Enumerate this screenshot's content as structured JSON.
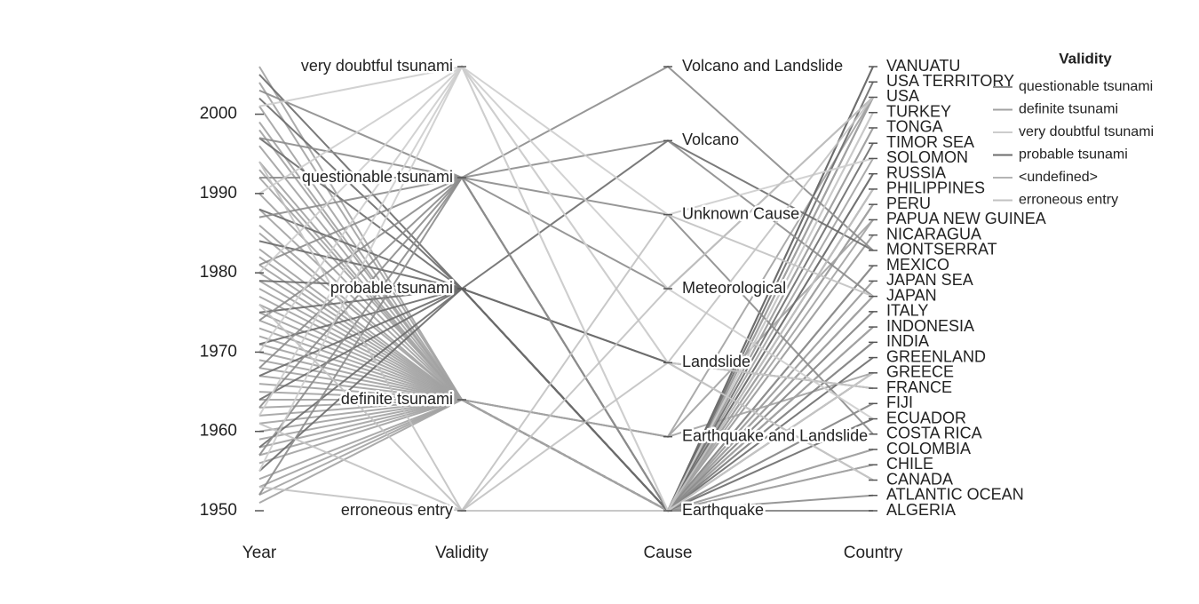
{
  "chart_data": {
    "type": "parallel-coordinates",
    "axes": [
      "Year",
      "Validity",
      "Cause",
      "Country"
    ],
    "year_axis": {
      "ticks": [
        1950,
        1960,
        1970,
        1980,
        1990,
        2000
      ],
      "range": [
        1950,
        2006
      ]
    },
    "validity_axis": [
      "erroneous entry",
      "definite tsunami",
      "probable tsunami",
      "questionable tsunami",
      "very doubtful tsunami"
    ],
    "cause_axis": [
      "Earthquake",
      "Earthquake and Landslide",
      "Landslide",
      "Meteorological",
      "Unknown Cause",
      "Volcano",
      "Volcano and Landslide"
    ],
    "country_axis": [
      "ALGERIA",
      "ATLANTIC OCEAN",
      "CANADA",
      "CHILE",
      "COLOMBIA",
      "COSTA RICA",
      "ECUADOR",
      "FIJI",
      "FRANCE",
      "GREECE",
      "GREENLAND",
      "INDIA",
      "INDONESIA",
      "ITALY",
      "JAPAN",
      "JAPAN SEA",
      "MEXICO",
      "MONTSERRAT",
      "NICARAGUA",
      "PAPUA NEW GUINEA",
      "PERU",
      "PHILIPPINES",
      "RUSSIA",
      "SOLOMON",
      "TIMOR SEA",
      "TONGA",
      "TURKEY",
      "USA",
      "USA TERRITORY",
      "VANUATU"
    ],
    "legend": {
      "title": "Validity",
      "placement": "right",
      "entries": [
        {
          "name": "questionable tsunami",
          "color": "#8c8c8c"
        },
        {
          "name": "definite tsunami",
          "color": "#a2a2a2"
        },
        {
          "name": "very doubtful tsunami",
          "color": "#cdcdcd"
        },
        {
          "name": "probable tsunami",
          "color": "#6c6c6c"
        },
        {
          "name": "<undefined>",
          "color": "#b4b4b4"
        },
        {
          "name": "erroneous entry",
          "color": "#c2c2c2"
        }
      ]
    },
    "records": [
      {
        "year": 1951,
        "validity": "definite tsunami",
        "cause": "Earthquake",
        "country": "CHILE"
      },
      {
        "year": 1952,
        "validity": "definite tsunami",
        "cause": "Earthquake",
        "country": "RUSSIA"
      },
      {
        "year": 1953,
        "validity": "definite tsunami",
        "cause": "Earthquake",
        "country": "FIJI"
      },
      {
        "year": 1954,
        "validity": "definite tsunami",
        "cause": "Earthquake",
        "country": "ALGERIA"
      },
      {
        "year": 1956,
        "validity": "definite tsunami",
        "cause": "Earthquake and Landslide",
        "country": "GREECE"
      },
      {
        "year": 1957,
        "validity": "definite tsunami",
        "cause": "Earthquake",
        "country": "USA"
      },
      {
        "year": 1958,
        "validity": "definite tsunami",
        "cause": "Earthquake and Landslide",
        "country": "USA"
      },
      {
        "year": 1959,
        "validity": "definite tsunami",
        "cause": "Earthquake",
        "country": "JAPAN"
      },
      {
        "year": 1960,
        "validity": "definite tsunami",
        "cause": "Earthquake",
        "country": "CHILE"
      },
      {
        "year": 1961,
        "validity": "definite tsunami",
        "cause": "Earthquake",
        "country": "JAPAN"
      },
      {
        "year": 1962,
        "validity": "definite tsunami",
        "cause": "Earthquake",
        "country": "COLOMBIA"
      },
      {
        "year": 1963,
        "validity": "definite tsunami",
        "cause": "Earthquake",
        "country": "INDONESIA"
      },
      {
        "year": 1964,
        "validity": "definite tsunami",
        "cause": "Earthquake",
        "country": "USA"
      },
      {
        "year": 1965,
        "validity": "definite tsunami",
        "cause": "Earthquake",
        "country": "ITALY"
      },
      {
        "year": 1966,
        "validity": "definite tsunami",
        "cause": "Earthquake",
        "country": "PERU"
      },
      {
        "year": 1967,
        "validity": "definite tsunami",
        "cause": "Earthquake",
        "country": "PHILIPPINES"
      },
      {
        "year": 1968,
        "validity": "definite tsunami",
        "cause": "Earthquake",
        "country": "JAPAN"
      },
      {
        "year": 1969,
        "validity": "definite tsunami",
        "cause": "Earthquake",
        "country": "MEXICO"
      },
      {
        "year": 1970,
        "validity": "definite tsunami",
        "cause": "Earthquake",
        "country": "PAPUA NEW GUINEA"
      },
      {
        "year": 1971,
        "validity": "definite tsunami",
        "cause": "Earthquake",
        "country": "SOLOMON"
      },
      {
        "year": 1972,
        "validity": "definite tsunami",
        "cause": "Earthquake",
        "country": "NICARAGUA"
      },
      {
        "year": 1973,
        "validity": "definite tsunami",
        "cause": "Earthquake",
        "country": "JAPAN SEA"
      },
      {
        "year": 1974,
        "validity": "definite tsunami",
        "cause": "Earthquake",
        "country": "PERU"
      },
      {
        "year": 1975,
        "validity": "definite tsunami",
        "cause": "Earthquake",
        "country": "USA"
      },
      {
        "year": 1976,
        "validity": "definite tsunami",
        "cause": "Earthquake",
        "country": "PHILIPPINES"
      },
      {
        "year": 1977,
        "validity": "definite tsunami",
        "cause": "Earthquake",
        "country": "INDONESIA"
      },
      {
        "year": 1978,
        "validity": "definite tsunami",
        "cause": "Earthquake",
        "country": "TONGA"
      },
      {
        "year": 1979,
        "validity": "definite tsunami",
        "cause": "Earthquake",
        "country": "COLOMBIA"
      },
      {
        "year": 1980,
        "validity": "definite tsunami",
        "cause": "Earthquake",
        "country": "JAPAN"
      },
      {
        "year": 1981,
        "validity": "definite tsunami",
        "cause": "Earthquake",
        "country": "INDONESIA"
      },
      {
        "year": 1982,
        "validity": "definite tsunami",
        "cause": "Earthquake",
        "country": "MEXICO"
      },
      {
        "year": 1983,
        "validity": "definite tsunami",
        "cause": "Earthquake",
        "country": "JAPAN SEA"
      },
      {
        "year": 1985,
        "validity": "definite tsunami",
        "cause": "Earthquake",
        "country": "MEXICO"
      },
      {
        "year": 1986,
        "validity": "definite tsunami",
        "cause": "Earthquake",
        "country": "USA"
      },
      {
        "year": 1988,
        "validity": "definite tsunami",
        "cause": "Earthquake",
        "country": "GREECE"
      },
      {
        "year": 1990,
        "validity": "definite tsunami",
        "cause": "Earthquake",
        "country": "PHILIPPINES"
      },
      {
        "year": 1992,
        "validity": "definite tsunami",
        "cause": "Earthquake",
        "country": "NICARAGUA"
      },
      {
        "year": 1993,
        "validity": "definite tsunami",
        "cause": "Earthquake",
        "country": "JAPAN"
      },
      {
        "year": 1994,
        "validity": "definite tsunami",
        "cause": "Earthquake",
        "country": "INDONESIA"
      },
      {
        "year": 1996,
        "validity": "definite tsunami",
        "cause": "Earthquake",
        "country": "PERU"
      },
      {
        "year": 1998,
        "validity": "definite tsunami",
        "cause": "Earthquake and Landslide",
        "country": "PAPUA NEW GUINEA"
      },
      {
        "year": 1999,
        "validity": "definite tsunami",
        "cause": "Earthquake",
        "country": "TURKEY"
      },
      {
        "year": 2001,
        "validity": "definite tsunami",
        "cause": "Earthquake",
        "country": "PERU"
      },
      {
        "year": 2004,
        "validity": "definite tsunami",
        "cause": "Earthquake",
        "country": "INDONESIA"
      },
      {
        "year": 2006,
        "validity": "definite tsunami",
        "cause": "Earthquake",
        "country": "TONGA"
      },
      {
        "year": 1955,
        "validity": "probable tsunami",
        "cause": "Earthquake",
        "country": "ECUADOR"
      },
      {
        "year": 1958,
        "validity": "probable tsunami",
        "cause": "Landslide",
        "country": "CANADA"
      },
      {
        "year": 1964,
        "validity": "probable tsunami",
        "cause": "Earthquake",
        "country": "GREECE"
      },
      {
        "year": 1967,
        "validity": "probable tsunami",
        "cause": "Earthquake",
        "country": "INDIA"
      },
      {
        "year": 1971,
        "validity": "probable tsunami",
        "cause": "Earthquake",
        "country": "TIMOR SEA"
      },
      {
        "year": 1975,
        "validity": "probable tsunami",
        "cause": "Earthquake",
        "country": "VANUATU"
      },
      {
        "year": 1979,
        "validity": "probable tsunami",
        "cause": "Landslide",
        "country": "FRANCE"
      },
      {
        "year": 1984,
        "validity": "probable tsunami",
        "cause": "Earthquake",
        "country": "GREENLAND"
      },
      {
        "year": 1988,
        "validity": "probable tsunami",
        "cause": "Earthquake",
        "country": "RUSSIA"
      },
      {
        "year": 1997,
        "validity": "probable tsunami",
        "cause": "Volcano",
        "country": "MONTSERRAT"
      },
      {
        "year": 2002,
        "validity": "probable tsunami",
        "cause": "Earthquake",
        "country": "USA TERRITORY"
      },
      {
        "year": 2005,
        "validity": "probable tsunami",
        "cause": "Earthquake",
        "country": "VANUATU"
      },
      {
        "year": 1952,
        "validity": "questionable tsunami",
        "cause": "Earthquake",
        "country": "ATLANTIC OCEAN"
      },
      {
        "year": 1957,
        "validity": "questionable tsunami",
        "cause": "Earthquake",
        "country": "ITALY"
      },
      {
        "year": 1963,
        "validity": "questionable tsunami",
        "cause": "Unknown Cause",
        "country": "COSTA RICA"
      },
      {
        "year": 1968,
        "validity": "questionable tsunami",
        "cause": "Earthquake",
        "country": "INDIA"
      },
      {
        "year": 1974,
        "validity": "questionable tsunami",
        "cause": "Meteorological",
        "country": "USA"
      },
      {
        "year": 1981,
        "validity": "questionable tsunami",
        "cause": "Earthquake",
        "country": "FIJI"
      },
      {
        "year": 1987,
        "validity": "questionable tsunami",
        "cause": "Volcano",
        "country": "JAPAN"
      },
      {
        "year": 1992,
        "validity": "questionable tsunami",
        "cause": "Earthquake",
        "country": "MEXICO"
      },
      {
        "year": 1997,
        "validity": "questionable tsunami",
        "cause": "Volcano and Landslide",
        "country": "MONTSERRAT"
      },
      {
        "year": 2003,
        "validity": "questionable tsunami",
        "cause": "Earthquake",
        "country": "ALGERIA"
      },
      {
        "year": 1955,
        "validity": "very doubtful tsunami",
        "cause": "Earthquake",
        "country": "GREECE"
      },
      {
        "year": 1962,
        "validity": "very doubtful tsunami",
        "cause": "Landslide",
        "country": "FRANCE"
      },
      {
        "year": 1970,
        "validity": "very doubtful tsunami",
        "cause": "Unknown Cause",
        "country": "SOLOMON"
      },
      {
        "year": 1980,
        "validity": "very doubtful tsunami",
        "cause": "Meteorological",
        "country": "ECUADOR"
      },
      {
        "year": 1990,
        "validity": "very doubtful tsunami",
        "cause": "Earthquake",
        "country": "TURKEY"
      },
      {
        "year": 2001,
        "validity": "very doubtful tsunami",
        "cause": "Landslide",
        "country": "CANADA"
      },
      {
        "year": 1953,
        "validity": "erroneous entry",
        "cause": "Meteorological",
        "country": "USA"
      },
      {
        "year": 1961,
        "validity": "erroneous entry",
        "cause": "Unknown Cause",
        "country": "JAPAN"
      },
      {
        "year": 1976,
        "validity": "erroneous entry",
        "cause": "Earthquake",
        "country": "PHILIPPINES"
      },
      {
        "year": 1994,
        "validity": "erroneous entry",
        "cause": "Landslide",
        "country": "USA"
      }
    ]
  }
}
